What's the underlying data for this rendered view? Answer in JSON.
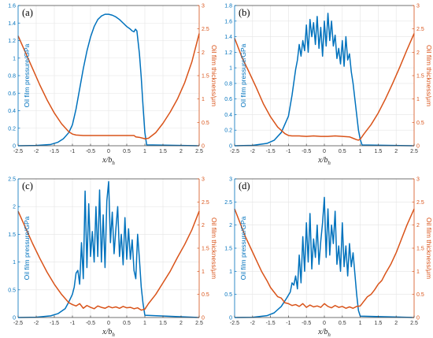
{
  "colors": {
    "pressure": "#0072BD",
    "thickness": "#D95319",
    "grid": "#e4e4e4",
    "axis": "#444444"
  },
  "chart_data": [
    {
      "type": "line",
      "panel_label": "(a)",
      "xlabel": "x/b_h",
      "xlabel_main": "x/",
      "xlabel_var": "b",
      "xlabel_sub": "h",
      "ylabel_left": "Oil film pressure/GPa",
      "ylabel_right": "Oil film thickness/μm",
      "xlim": [
        -2.5,
        2.5
      ],
      "ylim_left": [
        0,
        1.6
      ],
      "ylim_right": [
        0,
        3
      ],
      "x_ticks": [
        "-2.5",
        "-2",
        "-1.5",
        "-1",
        "-0.5",
        "0",
        "0.5",
        "1",
        "1.5",
        "2",
        "2.5"
      ],
      "y_left_ticks": [
        "0",
        "0.2",
        "0.4",
        "0.6",
        "0.8",
        "1",
        "1.2",
        "1.4",
        "1.6"
      ],
      "y_right_ticks": [
        "0",
        "0.5",
        "1",
        "1.5",
        "2",
        "2.5",
        "3"
      ],
      "grid": true,
      "series": [
        {
          "axis": "left",
          "x": [
            -2.5,
            -2.0,
            -1.6,
            -1.4,
            -1.25,
            -1.1,
            -1.0,
            -0.9,
            -0.8,
            -0.7,
            -0.6,
            -0.5,
            -0.4,
            -0.3,
            -0.2,
            -0.1,
            0.0,
            0.1,
            0.2,
            0.3,
            0.4,
            0.5,
            0.6,
            0.65,
            0.7,
            0.74,
            0.78,
            0.85,
            0.9,
            0.95,
            1.0,
            1.05,
            2.5
          ],
          "values": [
            0,
            0.003,
            0.015,
            0.04,
            0.08,
            0.15,
            0.24,
            0.42,
            0.65,
            0.88,
            1.08,
            1.24,
            1.36,
            1.44,
            1.48,
            1.5,
            1.5,
            1.49,
            1.47,
            1.44,
            1.4,
            1.36,
            1.33,
            1.31,
            1.3,
            1.33,
            1.31,
            1.05,
            0.78,
            0.45,
            0.15,
            0.01,
            0
          ]
        },
        {
          "axis": "right",
          "x": [
            -2.5,
            -2.3,
            -2.1,
            -1.9,
            -1.7,
            -1.5,
            -1.3,
            -1.1,
            -1.0,
            -0.9,
            -0.7,
            -0.5,
            0.0,
            0.5,
            0.7,
            0.75,
            0.85,
            0.95,
            1.0,
            1.1,
            1.3,
            1.5,
            1.7,
            1.9,
            2.1,
            2.3,
            2.5
          ],
          "values": [
            2.35,
            2.0,
            1.65,
            1.3,
            0.98,
            0.7,
            0.47,
            0.3,
            0.25,
            0.23,
            0.22,
            0.22,
            0.22,
            0.22,
            0.22,
            0.19,
            0.18,
            0.16,
            0.15,
            0.16,
            0.28,
            0.48,
            0.72,
            1.0,
            1.35,
            1.8,
            2.4
          ]
        }
      ]
    },
    {
      "type": "line",
      "panel_label": "(b)",
      "xlabel": "x/b_h",
      "xlabel_main": "x/",
      "xlabel_var": "b",
      "xlabel_sub": "h",
      "ylabel_left": "Oil film pressure/GPa",
      "ylabel_right": "Oil film thickness/μm",
      "xlim": [
        -2.5,
        2.5
      ],
      "ylim_left": [
        0,
        1.8
      ],
      "ylim_right": [
        0,
        3
      ],
      "x_ticks": [
        "-2.5",
        "-2",
        "-1.5",
        "-1",
        "-0.5",
        "0",
        "0.5",
        "1",
        "1.5",
        "2",
        "2.5"
      ],
      "y_left_ticks": [
        "0",
        "0.2",
        "0.4",
        "0.6",
        "0.8",
        "1",
        "1.2",
        "1.4",
        "1.6",
        "1.8"
      ],
      "y_right_ticks": [
        "0",
        "0.5",
        "1",
        "1.5",
        "2",
        "2.5",
        "3"
      ],
      "grid": true,
      "series": [
        {
          "axis": "left",
          "x": [
            -2.5,
            -2.0,
            -1.6,
            -1.4,
            -1.2,
            -1.0,
            -0.9,
            -0.8,
            -0.75,
            -0.7,
            -0.65,
            -0.6,
            -0.55,
            -0.5,
            -0.45,
            -0.4,
            -0.35,
            -0.3,
            -0.25,
            -0.2,
            -0.15,
            -0.1,
            -0.05,
            0.0,
            0.05,
            0.1,
            0.15,
            0.2,
            0.25,
            0.3,
            0.35,
            0.4,
            0.45,
            0.5,
            0.55,
            0.6,
            0.65,
            0.7,
            0.75,
            0.8,
            0.85,
            0.9,
            0.95,
            1.0,
            1.05,
            2.5
          ],
          "values": [
            0,
            0.005,
            0.03,
            0.07,
            0.17,
            0.38,
            0.65,
            0.98,
            1.1,
            1.3,
            1.15,
            1.35,
            1.22,
            1.55,
            1.2,
            1.62,
            1.4,
            1.58,
            1.3,
            1.66,
            1.25,
            1.52,
            1.15,
            1.6,
            1.28,
            1.7,
            1.35,
            1.6,
            1.28,
            1.42,
            1.12,
            1.25,
            1.05,
            1.35,
            1.02,
            1.4,
            1.1,
            1.18,
            0.95,
            0.8,
            0.6,
            0.4,
            0.2,
            0.08,
            0.01,
            0
          ]
        },
        {
          "axis": "right",
          "x": [
            -2.5,
            -2.3,
            -2.1,
            -1.9,
            -1.7,
            -1.5,
            -1.3,
            -1.1,
            -1.0,
            -0.9,
            -0.7,
            -0.5,
            -0.3,
            -0.1,
            0.1,
            0.3,
            0.5,
            0.7,
            0.8,
            0.9,
            0.95,
            1.0,
            1.1,
            1.3,
            1.5,
            1.7,
            1.9,
            2.1,
            2.3,
            2.5
          ],
          "values": [
            2.3,
            1.9,
            1.58,
            1.25,
            0.9,
            0.62,
            0.4,
            0.26,
            0.22,
            0.21,
            0.21,
            0.2,
            0.21,
            0.2,
            0.2,
            0.21,
            0.2,
            0.19,
            0.16,
            0.13,
            0.12,
            0.14,
            0.25,
            0.45,
            0.7,
            1.0,
            1.33,
            1.68,
            2.05,
            2.4
          ]
        }
      ]
    },
    {
      "type": "line",
      "panel_label": "(c)",
      "xlabel": "x/b_h",
      "xlabel_main": "x/",
      "xlabel_var": "b",
      "xlabel_sub": "h",
      "ylabel_left": "Oil film pressure/GPa",
      "ylabel_right": "Oil film thickness/μm",
      "xlim": [
        -2.5,
        2.5
      ],
      "ylim_left": [
        0,
        2.5
      ],
      "ylim_right": [
        0,
        3
      ],
      "x_ticks": [
        "-2.5",
        "-2",
        "-1.5",
        "-1",
        "-0.5",
        "0",
        "0.5",
        "1",
        "1.5",
        "2",
        "2.5"
      ],
      "y_left_ticks": [
        "0",
        "0.5",
        "1",
        "1.5",
        "2",
        "2.5"
      ],
      "y_right_ticks": [
        "0",
        "0.5",
        "1",
        "1.5",
        "2",
        "2.5",
        "3"
      ],
      "grid": true,
      "series": [
        {
          "axis": "left",
          "x": [
            -2.5,
            -2.0,
            -1.6,
            -1.4,
            -1.2,
            -1.1,
            -1.0,
            -0.95,
            -0.9,
            -0.85,
            -0.8,
            -0.75,
            -0.7,
            -0.65,
            -0.6,
            -0.55,
            -0.5,
            -0.45,
            -0.4,
            -0.35,
            -0.3,
            -0.25,
            -0.2,
            -0.15,
            -0.1,
            -0.05,
            0.0,
            0.05,
            0.1,
            0.15,
            0.2,
            0.25,
            0.3,
            0.35,
            0.4,
            0.45,
            0.5,
            0.55,
            0.6,
            0.65,
            0.7,
            0.75,
            0.8,
            0.85,
            0.9,
            0.95,
            1.0,
            2.5
          ],
          "values": [
            0,
            0.005,
            0.03,
            0.07,
            0.16,
            0.28,
            0.42,
            0.55,
            0.8,
            0.85,
            0.6,
            1.35,
            0.7,
            2.28,
            0.9,
            2.05,
            1.1,
            1.55,
            1.0,
            2.0,
            1.1,
            2.3,
            1.0,
            1.85,
            0.9,
            2.1,
            2.45,
            1.35,
            1.9,
            1.15,
            1.6,
            2.0,
            1.1,
            1.5,
            0.95,
            1.8,
            1.05,
            1.6,
            1.05,
            1.4,
            0.85,
            0.7,
            1.5,
            1.05,
            0.55,
            0.25,
            0.04,
            0
          ]
        },
        {
          "axis": "right",
          "x": [
            -2.5,
            -2.3,
            -2.1,
            -1.9,
            -1.7,
            -1.5,
            -1.3,
            -1.1,
            -1.0,
            -0.9,
            -0.8,
            -0.7,
            -0.6,
            -0.5,
            -0.4,
            -0.3,
            -0.2,
            -0.1,
            0.0,
            0.1,
            0.2,
            0.3,
            0.4,
            0.5,
            0.6,
            0.7,
            0.8,
            0.9,
            1.0,
            1.1,
            1.3,
            1.5,
            1.7,
            1.9,
            2.1,
            2.3,
            2.5
          ],
          "values": [
            2.3,
            1.95,
            1.6,
            1.28,
            0.98,
            0.72,
            0.5,
            0.32,
            0.28,
            0.25,
            0.3,
            0.2,
            0.26,
            0.22,
            0.19,
            0.25,
            0.22,
            0.2,
            0.24,
            0.21,
            0.23,
            0.2,
            0.24,
            0.21,
            0.22,
            0.19,
            0.21,
            0.16,
            0.18,
            0.3,
            0.5,
            0.75,
            1.0,
            1.3,
            1.58,
            1.9,
            2.3
          ]
        }
      ]
    },
    {
      "type": "line",
      "panel_label": "(d)",
      "xlabel": "x/b_h",
      "xlabel_main": "x/",
      "xlabel_var": "b",
      "xlabel_sub": "h",
      "ylabel_left": "Oil film pressure/GPa",
      "ylabel_right": "Oil film thickness/μm",
      "xlim": [
        -2.5,
        2.5
      ],
      "ylim_left": [
        0,
        3
      ],
      "ylim_right": [
        0,
        3
      ],
      "x_ticks": [
        "-2.5",
        "-2",
        "-1.5",
        "-1",
        "-0.5",
        "0",
        "0.5",
        "1",
        "1.5",
        "2",
        "2.5"
      ],
      "y_left_ticks": [
        "0",
        "0.5",
        "1",
        "1.5",
        "2",
        "2.5",
        "3"
      ],
      "y_right_ticks": [
        "0",
        "0.5",
        "1",
        "1.5",
        "2",
        "2.5",
        "3"
      ],
      "grid": true,
      "series": [
        {
          "axis": "left",
          "x": [
            -2.5,
            -2.0,
            -1.6,
            -1.4,
            -1.2,
            -1.05,
            -0.95,
            -0.9,
            -0.85,
            -0.8,
            -0.75,
            -0.7,
            -0.65,
            -0.6,
            -0.55,
            -0.5,
            -0.45,
            -0.4,
            -0.35,
            -0.3,
            -0.25,
            -0.2,
            -0.15,
            -0.1,
            -0.05,
            0.0,
            0.05,
            0.1,
            0.15,
            0.2,
            0.25,
            0.3,
            0.35,
            0.4,
            0.45,
            0.5,
            0.55,
            0.6,
            0.65,
            0.7,
            0.75,
            0.8,
            0.85,
            0.9,
            0.95,
            1.0,
            2.5
          ],
          "values": [
            0,
            0.005,
            0.04,
            0.1,
            0.24,
            0.42,
            0.55,
            0.75,
            0.7,
            0.9,
            0.62,
            1.35,
            0.75,
            1.75,
            1.0,
            2.05,
            1.2,
            2.25,
            1.05,
            1.7,
            1.3,
            2.0,
            1.15,
            1.65,
            2.05,
            2.6,
            1.3,
            2.35,
            1.35,
            2.0,
            1.6,
            2.3,
            1.15,
            1.55,
            1.0,
            2.05,
            1.1,
            1.55,
            0.9,
            1.6,
            1.1,
            1.4,
            0.95,
            0.5,
            0.15,
            0.03,
            0
          ]
        },
        {
          "axis": "right",
          "x": [
            -2.5,
            -2.35,
            -2.2,
            -2.05,
            -1.9,
            -1.75,
            -1.6,
            -1.5,
            -1.4,
            -1.3,
            -1.2,
            -1.1,
            -1.0,
            -0.9,
            -0.8,
            -0.7,
            -0.6,
            -0.5,
            -0.4,
            -0.3,
            -0.2,
            -0.1,
            0.0,
            0.1,
            0.2,
            0.3,
            0.4,
            0.5,
            0.6,
            0.7,
            0.8,
            0.9,
            1.0,
            1.1,
            1.2,
            1.3,
            1.4,
            1.5,
            1.6,
            1.7,
            1.85,
            2.0,
            2.15,
            2.3,
            2.5
          ],
          "values": [
            2.35,
            2.05,
            1.75,
            1.5,
            1.25,
            1.0,
            0.8,
            0.65,
            0.55,
            0.45,
            0.42,
            0.32,
            0.3,
            0.26,
            0.28,
            0.24,
            0.3,
            0.22,
            0.27,
            0.23,
            0.25,
            0.22,
            0.3,
            0.24,
            0.21,
            0.26,
            0.22,
            0.24,
            0.2,
            0.23,
            0.2,
            0.24,
            0.25,
            0.35,
            0.45,
            0.5,
            0.6,
            0.72,
            0.8,
            0.95,
            1.15,
            1.4,
            1.7,
            2.0,
            2.35
          ]
        }
      ]
    }
  ]
}
